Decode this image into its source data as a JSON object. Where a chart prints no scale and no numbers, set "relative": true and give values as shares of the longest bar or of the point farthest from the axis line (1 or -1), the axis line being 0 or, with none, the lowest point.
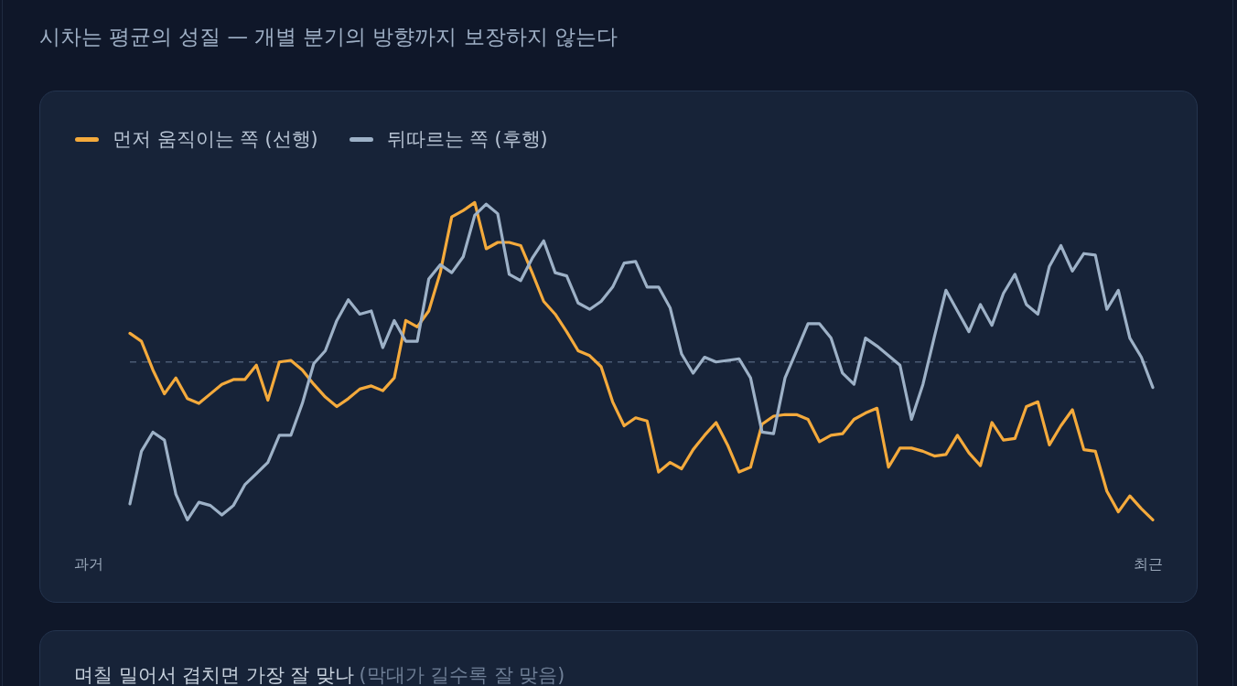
{
  "chart_data": [
    {
      "type": "line",
      "subtitle": "시차는 평균의 성질 — 개별 분기의 방향까지 보장하지 않는다",
      "relative": true,
      "categories": [
        null,
        null,
        null,
        null,
        null,
        null,
        null,
        null,
        null,
        null,
        null,
        null,
        null,
        null,
        null,
        null,
        null,
        null,
        null,
        null,
        null,
        null,
        null,
        null,
        null,
        null,
        null,
        null,
        null,
        null,
        null,
        null,
        null,
        null,
        null,
        null,
        null,
        null,
        null,
        null,
        null,
        null,
        null,
        null,
        null,
        null,
        null,
        null,
        null,
        null,
        null,
        null,
        null,
        null,
        null,
        null,
        null,
        null,
        null,
        null,
        null,
        null,
        null,
        null,
        null,
        null,
        null,
        null,
        null,
        null,
        null,
        null,
        null,
        null,
        null,
        null,
        null,
        null,
        null,
        null,
        null,
        null,
        null,
        null,
        null,
        null,
        null,
        null,
        null,
        null
      ],
      "series": [
        {
          "name": "먼저 움직이는 쪽 (선행)",
          "color": "#f4aa3c",
          "values": [
            0.18,
            0.13,
            -0.05,
            -0.2,
            -0.1,
            -0.23,
            -0.26,
            -0.2,
            -0.14,
            -0.11,
            -0.11,
            -0.02,
            -0.24,
            0,
            0.01,
            -0.05,
            -0.14,
            -0.22,
            -0.28,
            -0.23,
            -0.17,
            -0.15,
            -0.18,
            -0.1,
            0.26,
            0.22,
            0.32,
            0.56,
            0.91,
            0.95,
            1,
            0.71,
            0.75,
            0.75,
            0.73,
            0.56,
            0.38,
            0.3,
            0.19,
            0.07,
            0.04,
            -0.03,
            -0.25,
            -0.4,
            -0.35,
            -0.37,
            -0.69,
            -0.63,
            -0.67,
            -0.55,
            -0.46,
            -0.38,
            -0.52,
            -0.69,
            -0.66,
            -0.39,
            -0.34,
            -0.33,
            -0.33,
            -0.36,
            -0.5,
            -0.46,
            -0.45,
            -0.36,
            -0.32,
            -0.29,
            -0.66,
            -0.54,
            -0.54,
            -0.56,
            -0.59,
            -0.58,
            -0.46,
            -0.57,
            -0.65,
            -0.38,
            -0.49,
            -0.48,
            -0.28,
            -0.25,
            -0.52,
            -0.4,
            -0.3,
            -0.55,
            -0.56,
            -0.81,
            -0.94,
            -0.84,
            -0.92,
            -0.99
          ]
        },
        {
          "name": "뒤따르는 쪽 (후행)",
          "color": "#9db1c7",
          "values": [
            -0.89,
            -0.56,
            -0.44,
            -0.49,
            -0.83,
            -0.99,
            -0.88,
            -0.9,
            -0.96,
            -0.9,
            -0.77,
            -0.7,
            -0.63,
            -0.46,
            -0.46,
            -0.26,
            -0.01,
            0.07,
            0.26,
            0.39,
            0.3,
            0.32,
            0.09,
            0.26,
            0.13,
            0.13,
            0.52,
            0.61,
            0.56,
            0.66,
            0.92,
            0.99,
            0.93,
            0.55,
            0.51,
            0.65,
            0.76,
            0.56,
            0.54,
            0.37,
            0.33,
            0.38,
            0.47,
            0.62,
            0.63,
            0.47,
            0.47,
            0.34,
            0.05,
            -0.07,
            0.03,
            0,
            0.01,
            0.02,
            -0.1,
            -0.44,
            -0.45,
            -0.1,
            0.07,
            0.24,
            0.24,
            0.15,
            -0.07,
            -0.14,
            0.15,
            0.1,
            0.04,
            -0.02,
            -0.36,
            -0.14,
            0.16,
            0.45,
            0.32,
            0.19,
            0.36,
            0.23,
            0.43,
            0.55,
            0.36,
            0.3,
            0.6,
            0.73,
            0.57,
            0.68,
            0.67,
            0.33,
            0.45,
            0.15,
            0.03,
            -0.16
          ]
        }
      ],
      "ref_lines": [
        {
          "axis": "y",
          "value": 0,
          "line_style": "dashed",
          "color": "#4b5b74"
        }
      ],
      "legend": "top left",
      "annotations": [
        "과거",
        "최근"
      ]
    },
    {
      "type": "other",
      "title": "며칠 밀어서 겹치면 가장 잘 맞나",
      "subtitle": "(막대가 길수록 잘 맞음)"
    }
  ]
}
